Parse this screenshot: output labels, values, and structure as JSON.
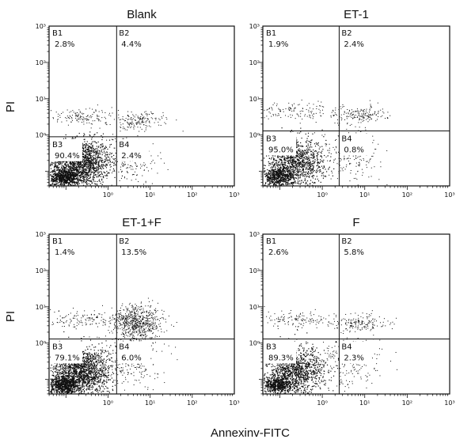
{
  "chart_data": {
    "type": "scatter",
    "axes": {
      "x_label": "Annexinv-FITC",
      "y_label": "PI",
      "x_tick_labels": [
        "10⁰",
        "10¹",
        "10²",
        "10³"
      ],
      "y_tick_labels": [
        "10⁰",
        "10¹",
        "10²",
        "10³"
      ]
    },
    "panels": [
      {
        "title": "Blank",
        "gate_x": 1.6,
        "gate_y": 0.9,
        "quadrants": [
          {
            "label": "B1",
            "value": "2.8%"
          },
          {
            "label": "B2",
            "value": "4.4%"
          },
          {
            "label": "B3",
            "value": "90.4%"
          },
          {
            "label": "B4",
            "value": "2.4%"
          }
        ]
      },
      {
        "title": "ET-1",
        "gate_x": 2.5,
        "gate_y": 1.3,
        "quadrants": [
          {
            "label": "B1",
            "value": "1.9%"
          },
          {
            "label": "B2",
            "value": "2.4%"
          },
          {
            "label": "B3",
            "value": "95.0%"
          },
          {
            "label": "B4",
            "value": "0.8%"
          }
        ]
      },
      {
        "title": "ET-1+F",
        "gate_x": 1.6,
        "gate_y": 1.3,
        "quadrants": [
          {
            "label": "B1",
            "value": "1.4%"
          },
          {
            "label": "B2",
            "value": "13.5%"
          },
          {
            "label": "B3",
            "value": "79.1%"
          },
          {
            "label": "B4",
            "value": "6.0%"
          }
        ]
      },
      {
        "title": "F",
        "gate_x": 2.5,
        "gate_y": 1.3,
        "quadrants": [
          {
            "label": "B1",
            "value": "2.6%"
          },
          {
            "label": "B2",
            "value": "5.8%"
          },
          {
            "label": "B3",
            "value": "89.3%"
          },
          {
            "label": "B4",
            "value": "2.3%"
          }
        ]
      }
    ]
  }
}
